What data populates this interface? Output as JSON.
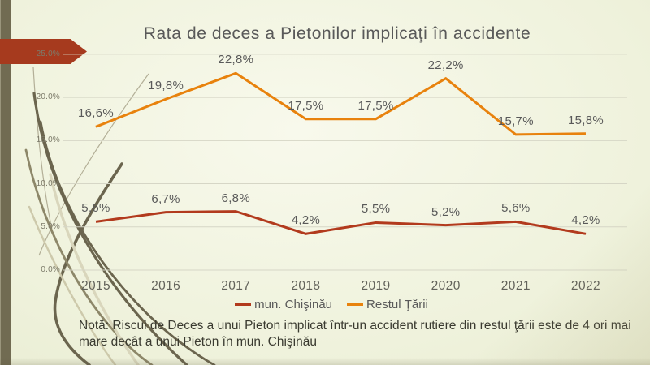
{
  "slide": {
    "title": "Rata de deces a Pietonilor implicaţi în accidente",
    "note": "Notă: Riscul de Deces a unui Pieton implicat într-un accident rutiere din restul ţării este de 4 ori mai mare decât a unui Pieton în mun. Chişinău"
  },
  "colors": {
    "accent_arrow_red": "#a63a1e",
    "olive_bar": "#716b52",
    "gridline": "#d6d6c6",
    "title_text": "#595959",
    "axis_text": "#7d7b6a"
  },
  "chart_data": {
    "type": "line",
    "categories": [
      "2015",
      "2016",
      "2017",
      "2018",
      "2019",
      "2020",
      "2021",
      "2022"
    ],
    "series": [
      {
        "name": "mun. Chişinău",
        "color": "#b23a1d",
        "values": [
          5.6,
          6.7,
          6.8,
          4.2,
          5.5,
          5.2,
          5.6,
          4.2
        ],
        "labels": [
          "5,6%",
          "6,7%",
          "6,8%",
          "4,2%",
          "5,5%",
          "5,2%",
          "5,6%",
          "4,2%"
        ]
      },
      {
        "name": "Restul Ţării",
        "color": "#e8820d",
        "values": [
          16.6,
          19.8,
          22.8,
          17.5,
          17.5,
          22.2,
          15.7,
          15.8
        ],
        "labels": [
          "16,6%",
          "19,8%",
          "22,8%",
          "17,5%",
          "17,5%",
          "22,2%",
          "15,7%",
          "15,8%"
        ]
      }
    ],
    "ylim": [
      0,
      25
    ],
    "ytick_step": 5,
    "ytick_labels": [
      "0.0%",
      "5.0%",
      "10.0%",
      "15.0%",
      "20.0%",
      "25.0%"
    ],
    "grid": true,
    "legend_position": "bottom"
  }
}
